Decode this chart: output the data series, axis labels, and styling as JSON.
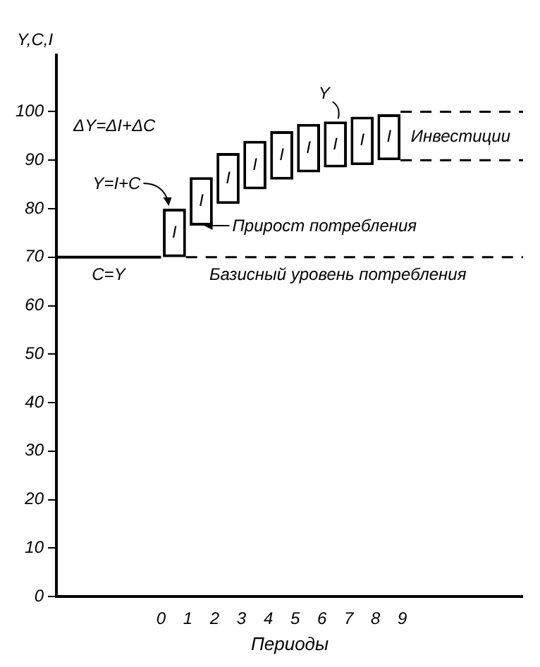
{
  "chart_data": {
    "type": "bar",
    "ylabel": "Y,C,I",
    "xlabel": "Периоды",
    "x": [
      0.5,
      1.5,
      2.5,
      3.5,
      4.5,
      5.5,
      6.5,
      7.5,
      8.5
    ],
    "series": [
      {
        "color": "#000000",
        "values": [
          10,
          10,
          10.5,
          10,
          10,
          10,
          9.5,
          10,
          9.5
        ],
        "base": [
          70,
          76.5,
          81,
          84,
          86,
          87.5,
          88.5,
          89,
          90
        ],
        "value_labels": [
          "I",
          "I",
          "I",
          "I",
          "I",
          "I",
          "I",
          "I",
          "I"
        ]
      },
      {
        "type": "line",
        "color": "#000000",
        "x": [
          -3.9,
          0
        ],
        "values": [
          70,
          70
        ],
        "marker": "none",
        "line_style": "solid"
      }
    ],
    "xlim": [
      -3.9,
      13.5
    ],
    "xticks": [
      0,
      1,
      2,
      3,
      4,
      5,
      6,
      7,
      8,
      9
    ],
    "ylim": [
      0,
      112
    ],
    "yticks": [
      0,
      10,
      20,
      30,
      40,
      50,
      60,
      70,
      80,
      90,
      100
    ],
    "grid": false,
    "legend": false,
    "ref_lines": [
      {
        "axis": "y",
        "value": 100,
        "line_style": "dashed"
      },
      {
        "axis": "y",
        "value": 90,
        "line_style": "dashed"
      },
      {
        "axis": "y",
        "value": 70,
        "line_style": "dashed",
        "label": "Базисный уровень потребления"
      }
    ],
    "annotations": [
      "ΔY=ΔI+ΔC",
      {
        "text": "Y=I+C",
        "x": 0.5,
        "y": 80
      },
      {
        "text": "Y",
        "x": 6.5,
        "y": 98
      },
      {
        "text": "Прирост потребления",
        "x": 1.5,
        "y": 76.5
      },
      {
        "text": "Инвестиции",
        "x": 9,
        "y": 95
      },
      {
        "text": "C=Y",
        "x": -3,
        "y": 70
      }
    ]
  }
}
